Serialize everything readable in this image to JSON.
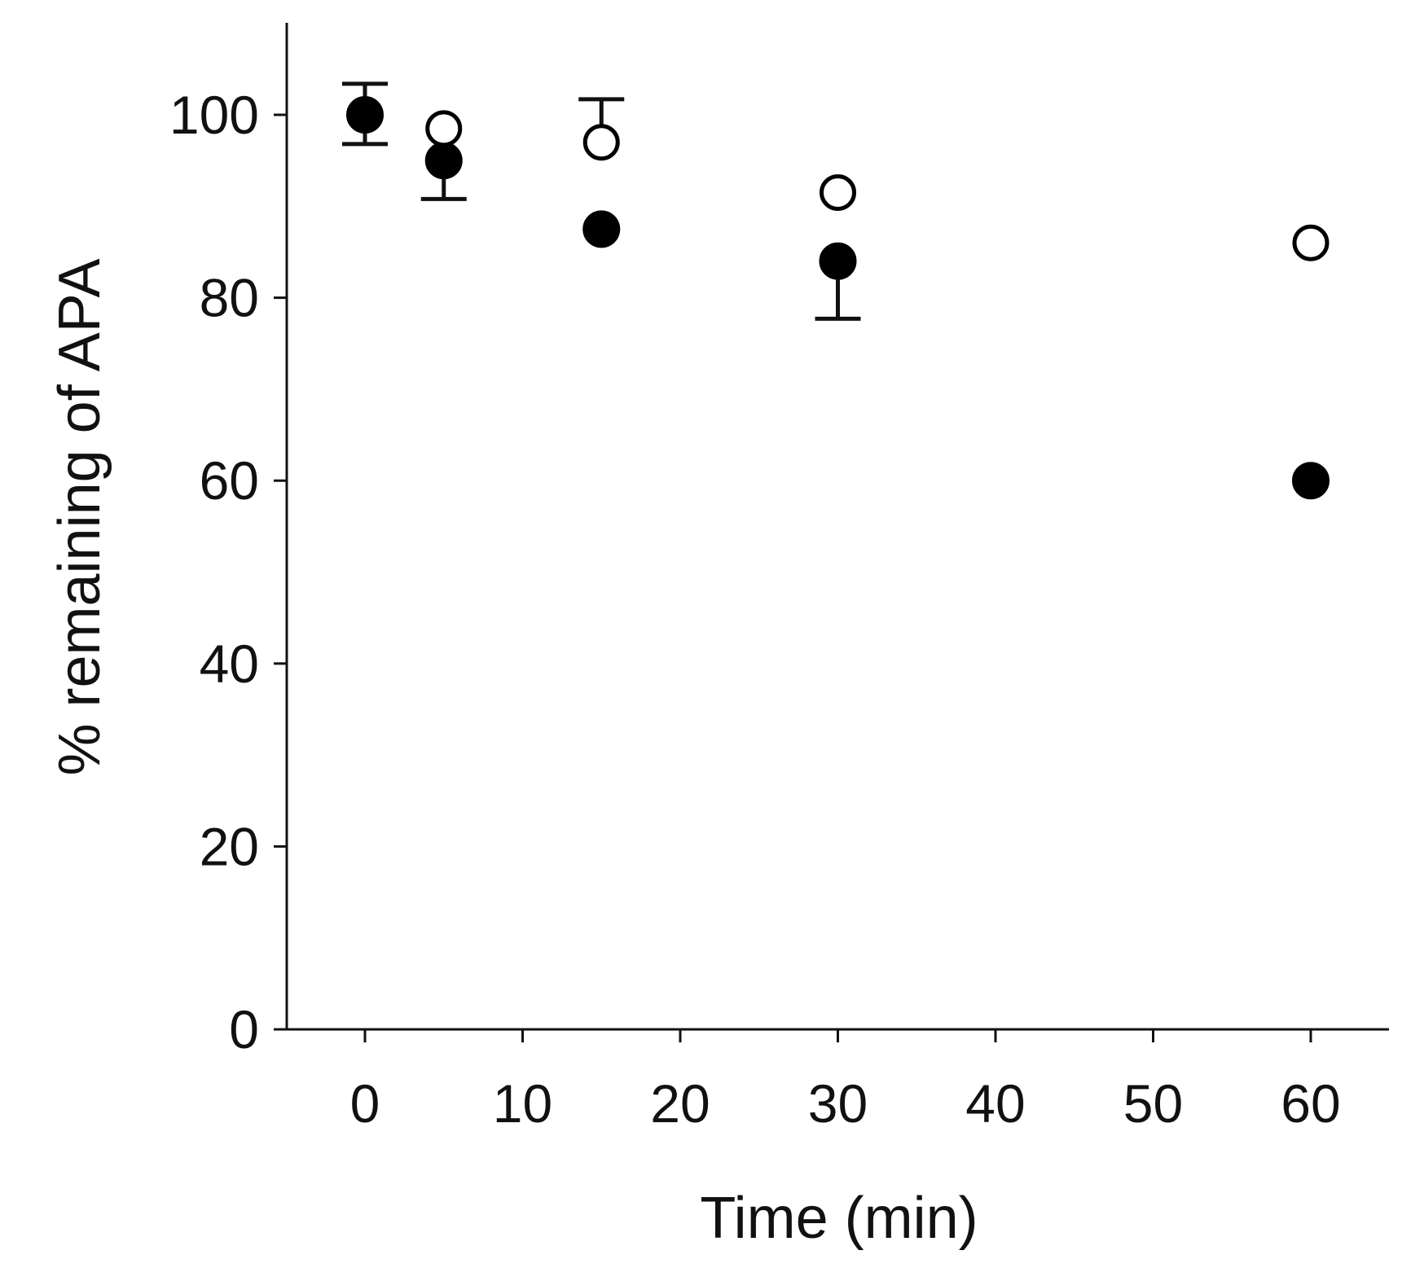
{
  "chart_data": {
    "type": "scatter",
    "title": "",
    "xlabel": "Time  (min)",
    "ylabel": "% remaining of APA",
    "xlim": [
      -5,
      65
    ],
    "ylim": [
      0,
      110
    ],
    "xticks": [
      0,
      10,
      20,
      30,
      40,
      50,
      60
    ],
    "yticks": [
      0,
      20,
      40,
      60,
      80,
      100
    ],
    "grid": false,
    "series": [
      {
        "marker": "filled-circle",
        "color": "#000000",
        "points": [
          {
            "x": 0,
            "y": 100,
            "err_low": 3.2,
            "err_high": 3.4
          },
          {
            "x": 5,
            "y": 95,
            "err_low": 4.2,
            "err_high": 0
          },
          {
            "x": 15,
            "y": 87.5,
            "err_low": 0,
            "err_high": 0
          },
          {
            "x": 30,
            "y": 84,
            "err_low": 6.3,
            "err_high": 0
          },
          {
            "x": 60,
            "y": 60,
            "err_low": 0,
            "err_high": 0
          }
        ]
      },
      {
        "marker": "open-circle",
        "color": "#000000",
        "points": [
          {
            "x": 5,
            "y": 98.5,
            "err_low": 0,
            "err_high": 0
          },
          {
            "x": 15,
            "y": 97,
            "err_low": 0,
            "err_high": 4.7
          },
          {
            "x": 30,
            "y": 91.5,
            "err_low": 0,
            "err_high": 0
          },
          {
            "x": 60,
            "y": 86,
            "err_low": 0,
            "err_high": 0
          }
        ]
      }
    ]
  }
}
